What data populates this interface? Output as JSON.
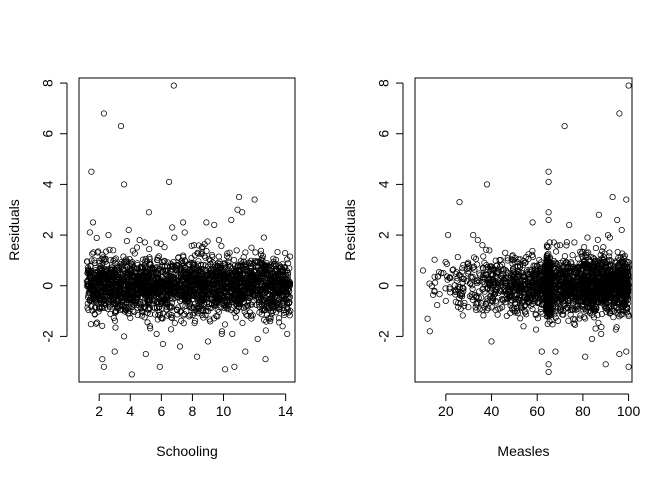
{
  "chart_data": [
    {
      "type": "scatter",
      "title": "",
      "xlabel": "Schooling",
      "ylabel": "Residuals",
      "xlim": [
        0.7,
        14.6
      ],
      "ylim": [
        -3.8,
        8.2
      ],
      "xticks": [
        2,
        4,
        6,
        8,
        10,
        14
      ],
      "yticks": [
        -2,
        0,
        2,
        4,
        6,
        8
      ],
      "grid": false,
      "marker": "open-circle",
      "series": [
        {
          "points": [
            [
              1.5,
              4.5
            ],
            [
              2.3,
              6.8
            ],
            [
              3.4,
              6.3
            ],
            [
              6.8,
              7.9
            ],
            [
              3.6,
              4.0
            ],
            [
              6.5,
              4.1
            ],
            [
              1.4,
              2.1
            ],
            [
              1.6,
              2.5
            ],
            [
              2.6,
              2.0
            ],
            [
              3.9,
              2.2
            ],
            [
              5.2,
              2.9
            ],
            [
              7.4,
              2.5
            ],
            [
              8.9,
              2.5
            ],
            [
              9.4,
              2.4
            ],
            [
              10.5,
              2.6
            ],
            [
              11.0,
              3.5
            ],
            [
              12.0,
              3.4
            ],
            [
              11.2,
              2.9
            ],
            [
              10.9,
              3.0
            ],
            [
              7.5,
              2.1
            ],
            [
              12.6,
              1.9
            ],
            [
              2.2,
              -2.9
            ],
            [
              2.3,
              -3.2
            ],
            [
              4.1,
              -3.5
            ],
            [
              5.9,
              -3.2
            ],
            [
              6.1,
              -2.3
            ],
            [
              8.3,
              -2.8
            ],
            [
              9.0,
              -2.2
            ],
            [
              10.1,
              -3.3
            ],
            [
              10.7,
              -3.2
            ],
            [
              12.7,
              -2.9
            ],
            [
              3.0,
              -2.6
            ],
            [
              14.1,
              -1.9
            ],
            [
              4.6,
              1.8
            ],
            [
              5.7,
              1.7
            ],
            [
              8.1,
              1.6
            ],
            [
              9.7,
              1.8
            ],
            [
              6.7,
              2.3
            ],
            [
              11.8,
              1.5
            ],
            [
              2.9,
              1.4
            ],
            [
              3.6,
              -2.0
            ],
            [
              7.2,
              -2.4
            ],
            [
              9.9,
              -1.8
            ],
            [
              12.2,
              -2.1
            ],
            [
              13.8,
              -1.6
            ],
            [
              1.8,
              -1.5
            ],
            [
              5.0,
              -2.7
            ],
            [
              11.4,
              -2.6
            ]
          ],
          "bulk": {
            "x_range": [
              1.2,
              14.3
            ],
            "y_band": [
              -1.5,
              1.5
            ],
            "count": 2600
          }
        }
      ]
    },
    {
      "type": "scatter",
      "title": "",
      "xlabel": "Measles",
      "ylabel": "Residuals",
      "xlim": [
        6.5,
        101.5
      ],
      "ylim": [
        -3.8,
        8.2
      ],
      "xticks": [
        20,
        40,
        60,
        80,
        100
      ],
      "yticks": [
        -2,
        0,
        2,
        4,
        6,
        8
      ],
      "grid": false,
      "marker": "open-circle",
      "series": [
        {
          "points": [
            [
              100,
              7.9
            ],
            [
              96,
              6.8
            ],
            [
              72,
              6.3
            ],
            [
              65,
              4.5
            ],
            [
              38,
              4.0
            ],
            [
              65,
              4.1
            ],
            [
              26,
              3.3
            ],
            [
              93,
              3.5
            ],
            [
              99,
              3.4
            ],
            [
              21,
              2.0
            ],
            [
              32,
              2.0
            ],
            [
              34,
              1.8
            ],
            [
              36,
              1.6
            ],
            [
              58,
              2.5
            ],
            [
              65,
              2.9
            ],
            [
              65,
              2.6
            ],
            [
              74,
              2.4
            ],
            [
              87,
              2.8
            ],
            [
              95,
              2.6
            ],
            [
              97,
              2.2
            ],
            [
              10,
              0.6
            ],
            [
              12,
              -1.3
            ],
            [
              13,
              -1.8
            ],
            [
              18,
              0.5
            ],
            [
              20,
              -0.6
            ],
            [
              40,
              -2.2
            ],
            [
              54,
              -1.6
            ],
            [
              62,
              -2.6
            ],
            [
              65,
              -3.1
            ],
            [
              65,
              -3.4
            ],
            [
              68,
              -2.6
            ],
            [
              81,
              -2.8
            ],
            [
              84,
              -2.1
            ],
            [
              90,
              -3.1
            ],
            [
              96,
              -2.7
            ],
            [
              99,
              -2.6
            ],
            [
              100,
              -3.2
            ],
            [
              15,
              -0.2
            ],
            [
              22,
              0.3
            ],
            [
              28,
              -0.8
            ],
            [
              46,
              1.3
            ],
            [
              50,
              -1.0
            ],
            [
              70,
              1.6
            ],
            [
              76,
              -1.5
            ],
            [
              82,
              1.9
            ],
            [
              88,
              -1.9
            ],
            [
              91,
              2.0
            ]
          ],
          "bulk": {
            "x_range": [
              10,
              100
            ],
            "y_band": [
              -1.5,
              1.5
            ],
            "count": 2600,
            "dense_x": [
              64,
              66
            ]
          }
        }
      ]
    }
  ]
}
